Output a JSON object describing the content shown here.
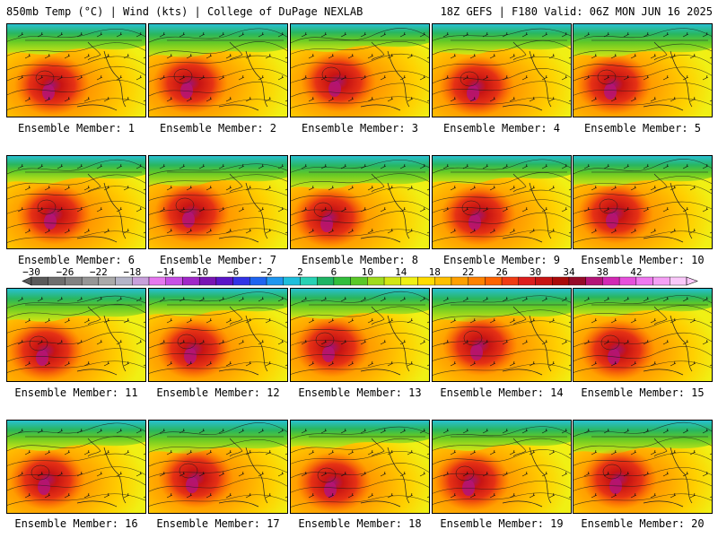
{
  "header": {
    "title_left": "850mb Temp (°C) | Wind (kts) | College of DuPage NEXLAB",
    "title_right": "18Z GEFS | F180 Valid: 06Z MON JUN 16 2025"
  },
  "panels": [
    {
      "label": "Ensemble Member: 1"
    },
    {
      "label": "Ensemble Member: 2"
    },
    {
      "label": "Ensemble Member: 3"
    },
    {
      "label": "Ensemble Member: 4"
    },
    {
      "label": "Ensemble Member: 5"
    },
    {
      "label": "Ensemble Member: 6"
    },
    {
      "label": "Ensemble Member: 7"
    },
    {
      "label": "Ensemble Member: 8"
    },
    {
      "label": "Ensemble Member: 9"
    },
    {
      "label": "Ensemble Member: 10"
    },
    {
      "label": "Ensemble Member: 11"
    },
    {
      "label": "Ensemble Member: 12"
    },
    {
      "label": "Ensemble Member: 13"
    },
    {
      "label": "Ensemble Member: 14"
    },
    {
      "label": "Ensemble Member: 15"
    },
    {
      "label": "Ensemble Member: 16"
    },
    {
      "label": "Ensemble Member: 17"
    },
    {
      "label": "Ensemble Member: 18"
    },
    {
      "label": "Ensemble Member: 19"
    },
    {
      "label": "Ensemble Member: 20"
    }
  ],
  "colorbar": {
    "ticks": [
      "-30",
      "-26",
      "-22",
      "-18",
      "-14",
      "-10",
      "-6",
      "-2",
      "2",
      "6",
      "10",
      "14",
      "18",
      "22",
      "26",
      "30",
      "34",
      "38",
      "42"
    ],
    "colors": [
      "#5a5a5a",
      "#6e6e6e",
      "#828282",
      "#969696",
      "#aaaaaa",
      "#b4b4c8",
      "#c8a0dc",
      "#e678f0",
      "#c850e6",
      "#a028c8",
      "#7814b4",
      "#5a14c8",
      "#3232e6",
      "#1e64f0",
      "#1e96f0",
      "#1ebedc",
      "#28d2b4",
      "#1eb464",
      "#32be3c",
      "#5ac828",
      "#a0dc1e",
      "#d2e614",
      "#f0f014",
      "#ffdc00",
      "#ffc000",
      "#ffa000",
      "#ff8200",
      "#ff6400",
      "#f03c14",
      "#dc1e1e",
      "#c81414",
      "#aa0a0a",
      "#960a28",
      "#b41478",
      "#d228b4",
      "#e650dc",
      "#f078f0",
      "#f5a0f5",
      "#fac8fa"
    ]
  }
}
